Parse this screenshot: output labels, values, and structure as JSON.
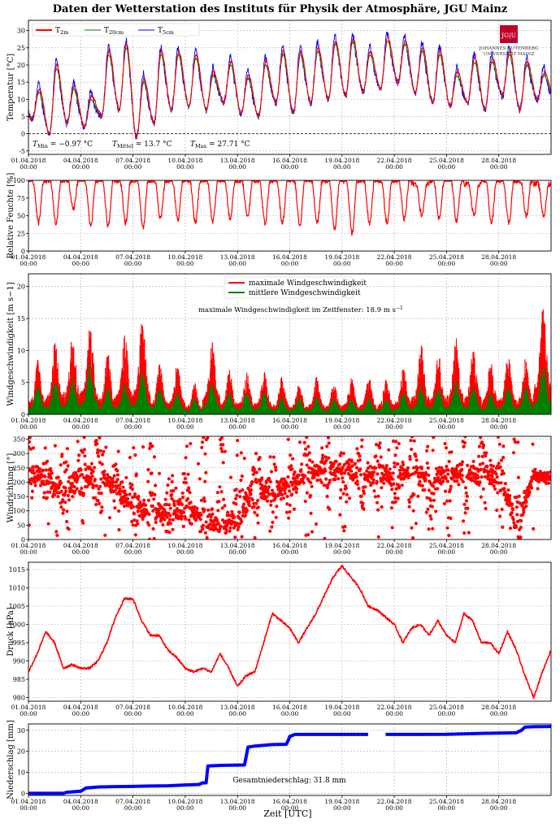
{
  "title": "Daten der Wetterstation des Instituts für Physik der Atmosphäre, JGU Mainz",
  "logo": {
    "mark": "JG|U",
    "line1": "JOHANNES GUTENBERG",
    "line2": "UNIVERSITÄT MAINZ",
    "color": "#c1002a"
  },
  "xlabel": "Zeit [UTC]",
  "x_ticks": [
    {
      "d": 0,
      "l1": "01.04.2018",
      "l2": "00:00"
    },
    {
      "d": 3,
      "l1": "04.04.2018",
      "l2": "00:00"
    },
    {
      "d": 6,
      "l1": "07.04.2018",
      "l2": "00:00"
    },
    {
      "d": 9,
      "l1": "10.04.2018",
      "l2": "00:00"
    },
    {
      "d": 12,
      "l1": "13.04.2018",
      "l2": "00:00"
    },
    {
      "d": 15,
      "l1": "16.04.2018",
      "l2": "00:00"
    },
    {
      "d": 18,
      "l1": "19.04.2018",
      "l2": "00:00"
    },
    {
      "d": 21,
      "l1": "22.04.2018",
      "l2": "00:00"
    },
    {
      "d": 24,
      "l1": "25.04.2018",
      "l2": "00:00"
    },
    {
      "d": 27,
      "l1": "28.04.2018",
      "l2": "00:00"
    }
  ],
  "x_range": [
    0,
    30
  ],
  "chart_data": [
    {
      "type": "line",
      "ylabel": "Temperatur [°C]",
      "ylim": [
        -6,
        33
      ],
      "yticks": [
        -5,
        0,
        5,
        10,
        15,
        20,
        25,
        30
      ],
      "zero_line": true,
      "legend": [
        "T2m",
        "T20cm",
        "T5cm"
      ],
      "annotations": {
        "tmin": "TMin = −0.97 °C",
        "tmean": "TMittel = 13.7 °C",
        "tmax": "TMax = 27.71 °C"
      },
      "annotation_parts": {
        "tmin": {
          "sub": "Min",
          "rest": " = −0.97 °C"
        },
        "tmean": {
          "sub": "Mittel",
          "rest": " = 13.7 °C"
        },
        "tmax": {
          "sub": "Max",
          "rest": " = 27.71 °C"
        },
        "leg_t2m": {
          "sub": "2m"
        },
        "leg_t20": {
          "sub": "20cm"
        },
        "leg_t5": {
          "sub": "5cm"
        }
      },
      "series": [
        {
          "name": "T2m",
          "color": "#ff0000",
          "daily_min": [
            4,
            0,
            3,
            2,
            5,
            7,
            -0.97,
            3,
            7,
            8,
            7,
            9,
            6,
            5,
            9,
            6,
            9,
            10,
            11,
            12,
            13,
            15,
            12,
            9,
            8,
            9,
            7,
            11,
            7,
            10
          ],
          "daily_max": [
            13,
            20,
            14,
            11,
            24,
            26,
            16,
            24,
            24,
            23,
            18,
            21,
            17,
            21,
            24,
            24,
            25,
            27,
            27.7,
            24,
            28,
            27,
            25,
            24,
            18,
            22,
            22,
            24,
            21,
            18
          ]
        },
        {
          "name": "T20cm",
          "color": "#008000"
        },
        {
          "name": "T5cm",
          "color": "#0000ff"
        }
      ]
    },
    {
      "type": "line",
      "ylabel": "Relative Feuchte [%]",
      "ylim": [
        0,
        100
      ],
      "yticks": [
        0,
        25,
        50,
        75,
        100
      ],
      "series": [
        {
          "name": "Relative Feuchte",
          "color": "#ff0000",
          "daily_min": [
            40,
            38,
            60,
            35,
            35,
            40,
            32,
            45,
            45,
            40,
            42,
            45,
            48,
            40,
            40,
            35,
            40,
            30,
            25,
            40,
            40,
            45,
            50,
            45,
            42,
            50,
            40,
            40,
            50,
            50
          ],
          "daily_max": [
            100,
            100,
            100,
            100,
            100,
            100,
            100,
            100,
            100,
            100,
            100,
            100,
            100,
            100,
            100,
            100,
            100,
            100,
            100,
            100,
            100,
            100,
            95,
            100,
            100,
            95,
            100,
            100,
            100,
            95
          ]
        }
      ]
    },
    {
      "type": "line",
      "ylabel": "Windgeschwindigkeit [m s−1]",
      "ylim": [
        0,
        22
      ],
      "yticks": [
        0,
        5,
        10,
        15,
        20
      ],
      "legend": [
        "maximale Windgeschwindigkeit",
        "mittlere Windgeschwindigkeit"
      ],
      "annotation": "maximale Windgeschwindigkeit im Zeitfenster: 18.9 m s−1",
      "annotation_parts": {
        "prefix": "maximale Windgeschwindigkeit im Zeitfenster: 18.9 m s",
        "sup": "−1"
      },
      "series": [
        {
          "name": "maximale Windgeschwindigkeit",
          "color": "#ff0000",
          "daily_peak": [
            9,
            12,
            14,
            15,
            10,
            13,
            16,
            8,
            8,
            5,
            12,
            7,
            7,
            7,
            6,
            5,
            6,
            5,
            6,
            6,
            6,
            8,
            11,
            10,
            12,
            11,
            9,
            10,
            9,
            18.9
          ]
        },
        {
          "name": "mittlere Windgeschwindigkeit",
          "color": "#008000",
          "daily_peak": [
            5,
            6,
            7,
            9,
            5,
            6,
            8,
            5,
            4,
            3,
            6,
            4,
            4,
            4,
            3,
            3,
            3,
            3,
            3,
            3,
            3,
            4,
            5,
            5,
            6,
            5,
            4,
            5,
            5,
            9
          ]
        }
      ]
    },
    {
      "type": "scatter",
      "ylabel": "Windrichtung [°]",
      "ylim": [
        0,
        360
      ],
      "yticks": [
        0,
        50,
        100,
        150,
        200,
        250,
        300,
        350
      ],
      "series": [
        {
          "name": "Windrichtung",
          "color": "#ff0000",
          "daily_dir": [
            250,
            210,
            160,
            220,
            220,
            180,
            120,
            90,
            100,
            110,
            80,
            50,
            60,
            200,
            170,
            190,
            230,
            240,
            250,
            220,
            220,
            230,
            240,
            200,
            230,
            230,
            240,
            220,
            60,
            220
          ]
        }
      ]
    },
    {
      "type": "line",
      "ylabel": "Druck [hPa]",
      "ylim": [
        979,
        1017
      ],
      "yticks": [
        980,
        985,
        990,
        995,
        1000,
        1005,
        1010,
        1015
      ],
      "series": [
        {
          "name": "Druck",
          "color": "#ff0000",
          "x": [
            0,
            0.5,
            1,
            1.5,
            2,
            2.5,
            3,
            3.5,
            4,
            4.5,
            5,
            5.5,
            6,
            6.5,
            7,
            7.5,
            8,
            8.5,
            9,
            9.5,
            10,
            10.5,
            11,
            11.5,
            12,
            12.5,
            13,
            13.5,
            14,
            14.5,
            15,
            15.5,
            16,
            16.5,
            17,
            17.5,
            18,
            18.5,
            19,
            19.5,
            20,
            20.5,
            21,
            21.5,
            22,
            22.5,
            23,
            23.5,
            24,
            24.5,
            25,
            25.5,
            26,
            26.5,
            27,
            27.5,
            28,
            28.5,
            29,
            29.5,
            30
          ],
          "y": [
            987,
            992,
            998,
            995,
            988,
            989,
            988,
            988,
            990,
            995,
            1002,
            1007,
            1007,
            1001,
            997,
            997,
            993,
            991,
            988,
            987,
            988,
            987,
            992,
            988,
            983,
            986,
            987,
            995,
            1003,
            1001,
            999,
            995,
            999,
            1003,
            1008,
            1013,
            1016,
            1013,
            1010,
            1005,
            1004,
            1002,
            1000,
            995,
            999,
            1000,
            997,
            1001,
            997,
            995,
            1003,
            1001,
            995,
            995,
            992,
            998,
            993,
            986,
            980,
            987,
            993
          ]
        }
      ]
    },
    {
      "type": "line",
      "ylabel": "Niederschlag [mm]",
      "ylim": [
        -1,
        33
      ],
      "yticks": [
        0,
        10,
        20,
        30
      ],
      "annotation": "Gesamtniederschlag: 31.8 mm",
      "series": [
        {
          "name": "Niederschlag",
          "color": "#0000ff",
          "x": [
            0,
            2,
            2.2,
            3,
            3.3,
            4,
            5,
            6,
            7,
            8,
            9,
            9.8,
            10,
            10.2,
            10.3,
            11,
            12.4,
            12.5,
            12.6,
            13,
            14,
            14.8,
            14.9,
            15,
            15.3,
            18,
            19.5,
            19.7,
            20.5,
            21,
            24,
            26,
            28,
            28.3,
            28.5,
            29,
            30
          ],
          "y": [
            0,
            0,
            0.5,
            1,
            2.5,
            3,
            3.2,
            3.3,
            3.5,
            3.6,
            4,
            4.2,
            5,
            5,
            13,
            13.3,
            13.5,
            17.5,
            22,
            22.5,
            23.2,
            23.3,
            25,
            27,
            28,
            28,
            28,
            null,
            28,
            28,
            28.1,
            28.5,
            28.8,
            30,
            31.5,
            31.7,
            31.8
          ]
        }
      ]
    }
  ]
}
